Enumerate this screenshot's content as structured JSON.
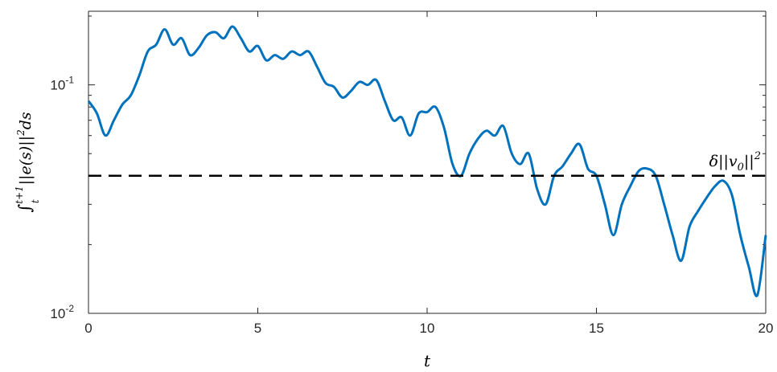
{
  "chart_data": {
    "type": "line",
    "xlabel": "t",
    "ylabel": "∫_t^{t+1} ||e(s)||^2 ds",
    "xlim": [
      0,
      20
    ],
    "ylim": [
      0.01,
      0.21
    ],
    "yscale": "log",
    "grid": false,
    "x_ticks": [
      0,
      5,
      10,
      15,
      20
    ],
    "x_tick_labels": [
      "0",
      "5",
      "10",
      "15",
      "20"
    ],
    "y_ticks": [
      0.1,
      0.01
    ],
    "y_tick_labels": [
      {
        "base": "10",
        "exp": "-1"
      },
      {
        "base": "10",
        "exp": "-2"
      }
    ],
    "threshold_label": "δ||v0||²",
    "colors": {
      "series": "#0072BD",
      "threshold": "#000000",
      "axes": "#262626"
    },
    "series": [
      {
        "style": "solid",
        "x": [
          0,
          0.25,
          0.5,
          0.75,
          1.0,
          1.25,
          1.5,
          1.75,
          2.0,
          2.25,
          2.5,
          2.75,
          3.0,
          3.25,
          3.5,
          3.75,
          4.0,
          4.25,
          4.5,
          4.75,
          5.0,
          5.25,
          5.5,
          5.75,
          6.0,
          6.25,
          6.5,
          6.75,
          7.0,
          7.25,
          7.5,
          7.75,
          8.0,
          8.25,
          8.5,
          8.75,
          9.0,
          9.25,
          9.5,
          9.75,
          10.0,
          10.25,
          10.5,
          10.75,
          11.0,
          11.25,
          11.5,
          11.75,
          12.0,
          12.25,
          12.5,
          12.75,
          13.0,
          13.25,
          13.5,
          13.75,
          14.0,
          14.25,
          14.5,
          14.75,
          15.0,
          15.25,
          15.5,
          15.75,
          16.0,
          16.25,
          16.5,
          16.75,
          17.0,
          17.25,
          17.5,
          17.75,
          18.0,
          18.25,
          18.5,
          18.75,
          19.0,
          19.25,
          19.5,
          19.75,
          20.0
        ],
        "values": [
          0.085,
          0.075,
          0.06,
          0.07,
          0.082,
          0.09,
          0.11,
          0.14,
          0.15,
          0.175,
          0.15,
          0.16,
          0.135,
          0.145,
          0.165,
          0.17,
          0.16,
          0.18,
          0.16,
          0.14,
          0.148,
          0.128,
          0.135,
          0.13,
          0.14,
          0.135,
          0.14,
          0.12,
          0.102,
          0.098,
          0.088,
          0.094,
          0.103,
          0.1,
          0.105,
          0.085,
          0.07,
          0.072,
          0.06,
          0.075,
          0.076,
          0.08,
          0.065,
          0.045,
          0.04,
          0.05,
          0.058,
          0.063,
          0.06,
          0.066,
          0.05,
          0.045,
          0.05,
          0.035,
          0.03,
          0.04,
          0.044,
          0.05,
          0.055,
          0.043,
          0.04,
          0.03,
          0.022,
          0.03,
          0.036,
          0.042,
          0.043,
          0.04,
          0.03,
          0.022,
          0.017,
          0.024,
          0.028,
          0.032,
          0.036,
          0.038,
          0.033,
          0.022,
          0.016,
          0.012,
          0.022
        ]
      },
      {
        "style": "dashed",
        "x": [
          0,
          20
        ],
        "values": [
          0.04,
          0.04
        ]
      }
    ]
  }
}
